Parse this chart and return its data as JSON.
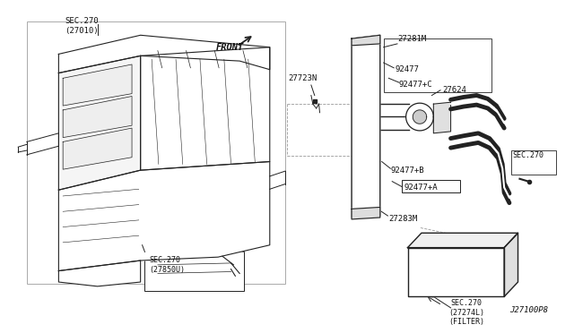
{
  "bg_color": "#ffffff",
  "line_color": "#222222",
  "label_color": "#111111",
  "fig_width": 6.4,
  "fig_height": 3.72,
  "diagram_code": "J27100P8",
  "labels": {
    "sec270_27010": "SEC.270\n(27010)",
    "sec270_27850u": "SEC.270\n(27850U)",
    "sec270_27274l": "SEC.270\n(27274L)\n(FILTER)",
    "sec270_right": "SEC.270",
    "front": "FRONT",
    "part_27723n": "27723N",
    "part_27281m": "27281M",
    "part_92477": "92477",
    "part_92477c": "92477+C",
    "part_27624": "27624",
    "part_92477b": "92477+B",
    "part_92477a": "92477+A",
    "part_27283m": "27283M"
  }
}
